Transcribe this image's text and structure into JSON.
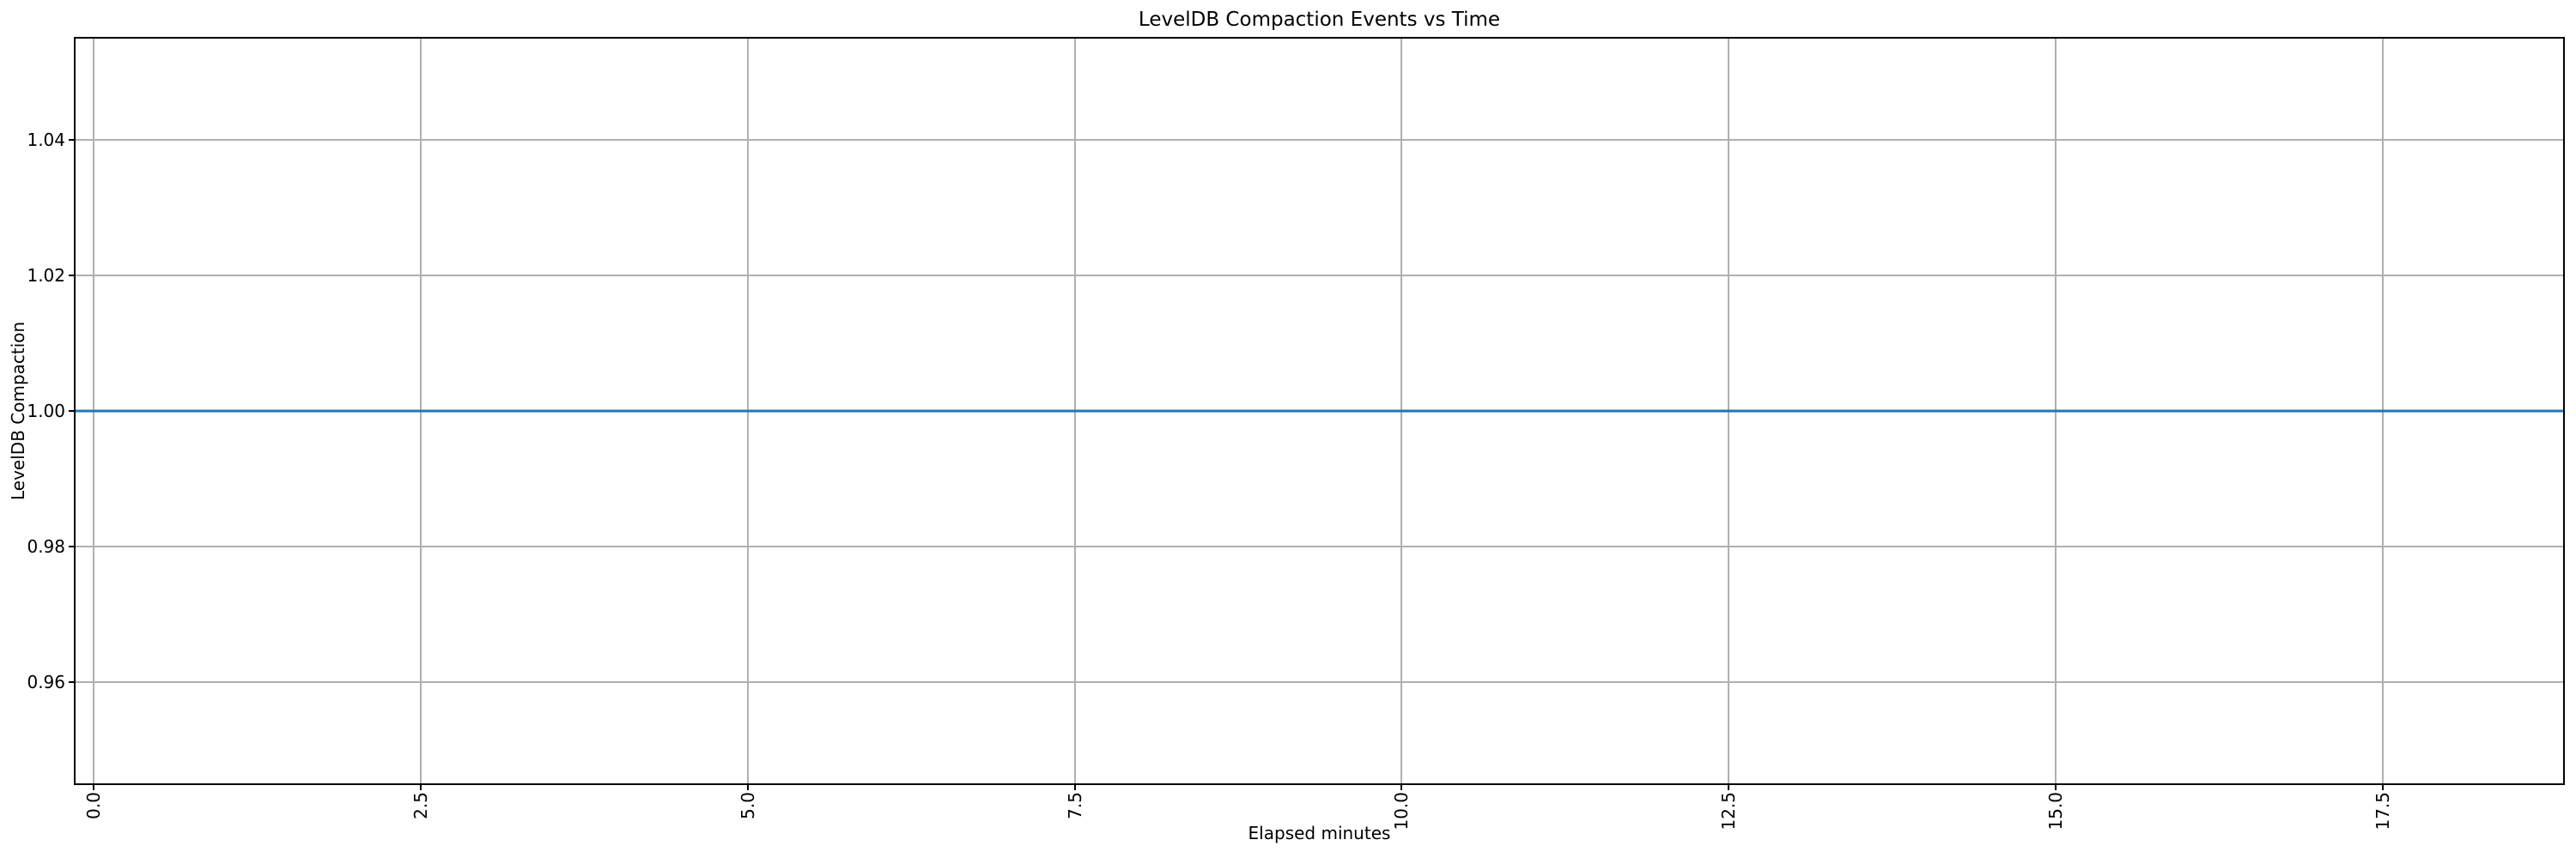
{
  "chart_data": {
    "type": "line",
    "title": "LevelDB Compaction Events vs Time",
    "xlabel": "Elapsed minutes",
    "ylabel": "LevelDB Compaction",
    "xlim": [
      -0.14,
      18.88
    ],
    "ylim": [
      0.945,
      1.055
    ],
    "xticks": [
      0.0,
      2.5,
      5.0,
      7.5,
      10.0,
      12.5,
      15.0,
      17.5
    ],
    "xtick_labels": [
      "0.0",
      "2.5",
      "5.0",
      "7.5",
      "10.0",
      "12.5",
      "15.0",
      "17.5"
    ],
    "xtick_rotation": 90,
    "yticks": [
      0.96,
      0.98,
      1.0,
      1.02,
      1.04
    ],
    "ytick_labels": [
      "0.96",
      "0.98",
      "1.00",
      "1.02",
      "1.04"
    ],
    "grid": true,
    "legend": false,
    "series": [
      {
        "name": "LevelDB Compaction",
        "color": "#1f77b4",
        "x": [
          -0.14,
          18.88
        ],
        "y": [
          1.0,
          1.0
        ]
      }
    ],
    "colors": {
      "grid": "#b0b0b0",
      "spine": "#000000",
      "text": "#000000",
      "background": "#ffffff"
    }
  }
}
